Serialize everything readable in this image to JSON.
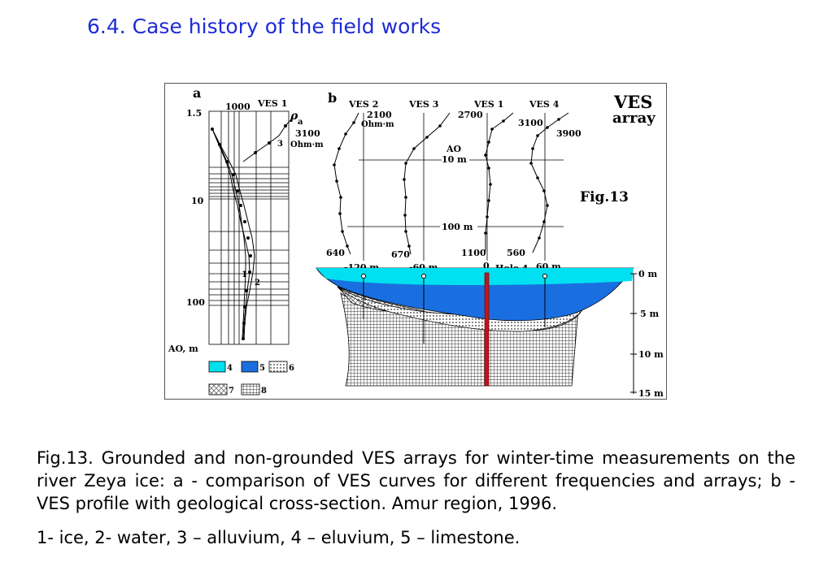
{
  "slide_title": "6.4. Case history of the field works",
  "figure": {
    "panel_a": {
      "label": "a",
      "curve_title": "VES 1",
      "top_value": "1000",
      "rho_symbol": "ρ",
      "rho_sub": "a",
      "end_value": "3100",
      "end_unit": "Ohm·m",
      "curve_3_label": "3",
      "curve_1_label": "1",
      "curve_2_label": "2",
      "axis_ticks": [
        "1.5",
        "10",
        "100"
      ],
      "axis_label": "AO, m"
    },
    "panel_b": {
      "label": "b",
      "curve_titles": [
        "VES 2",
        "VES 3",
        "VES 1",
        "VES 4"
      ],
      "top_values": [
        "2100",
        "2700",
        "3100",
        "3900"
      ],
      "top_unit": "Ohm·m",
      "bottom_values": [
        "640",
        "670",
        "1100",
        "560"
      ],
      "ao_label": "AO",
      "ao_10": "10 m",
      "ao_100": "100 m",
      "positions": [
        "-120 m",
        "-60 m",
        "0",
        "60 m"
      ],
      "hole_label": "Hole 4",
      "depth_labels": [
        "0 m",
        "5 m",
        "10 m",
        "15 m"
      ],
      "title_line1": "VES",
      "title_line2": "array",
      "fig_label": "Fig.13"
    },
    "legend": [
      "4",
      "5",
      "6",
      "7",
      "8"
    ],
    "colors": {
      "ice": "#00e0f0",
      "water": "#1a6fe0",
      "hole": "#c0141a"
    }
  },
  "caption": "Fig.13. Grounded and non-grounded VES arrays for winter-time measurements on the river Zeya ice: a - comparison of VES curves for different frequencies and arrays; b - VES profile with geological      cross-section. Amur region, 1996.",
  "legend_line": "1- ice, 2- water, 3 – alluvium, 4 – eluvium, 5 – limestone."
}
